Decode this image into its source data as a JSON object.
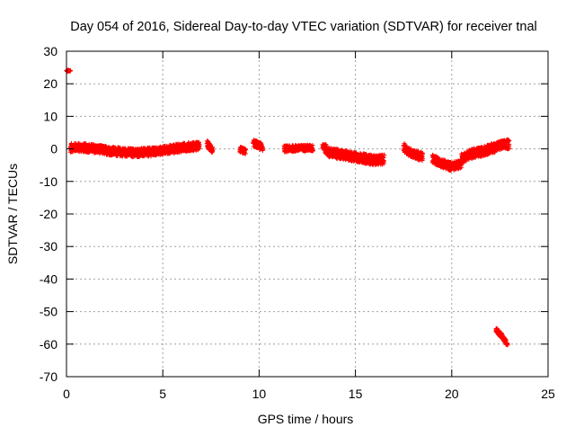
{
  "chart_data": {
    "type": "scatter",
    "title": "Day 054 of 2016, Sidereal Day-to-day VTEC variation (SDTVAR) for receiver tnal",
    "xlabel": "GPS time / hours",
    "ylabel": "SDTVAR / TECUs",
    "xlim": [
      0,
      25
    ],
    "ylim": [
      -70,
      30
    ],
    "x_ticks": [
      0,
      5,
      10,
      15,
      20,
      25
    ],
    "y_ticks": [
      -70,
      -60,
      -50,
      -40,
      -30,
      -20,
      -10,
      0,
      10,
      20,
      30
    ],
    "grid": true,
    "legend": "none",
    "series_color": "#ff0000",
    "series": [
      {
        "name": "SDTVAR",
        "segments": [
          {
            "x": [
              0.0,
              0.2
            ],
            "y": [
              24.0,
              24.0
            ],
            "spread": 0.3
          },
          {
            "x": [
              0.2,
              0.5,
              1.0,
              1.5,
              2.0,
              2.5,
              3.0,
              3.5,
              4.0,
              4.5,
              5.0,
              5.5,
              6.0,
              6.5,
              6.9
            ],
            "y": [
              0.3,
              0.5,
              0.3,
              0.0,
              -0.4,
              -0.8,
              -1.0,
              -1.2,
              -1.1,
              -0.9,
              -0.5,
              0.0,
              0.4,
              0.7,
              0.8
            ],
            "spread": 1.8
          },
          {
            "x": [
              7.3,
              7.6
            ],
            "y": [
              1.5,
              -0.5
            ],
            "spread": 1.5
          },
          {
            "x": [
              9.0,
              9.3
            ],
            "y": [
              -0.3,
              -0.8
            ],
            "spread": 1.2
          },
          {
            "x": [
              9.7,
              10.2
            ],
            "y": [
              1.8,
              0.5
            ],
            "spread": 1.5
          },
          {
            "x": [
              11.3,
              12.0,
              12.5,
              12.8
            ],
            "y": [
              0.0,
              0.2,
              0.3,
              0.2
            ],
            "spread": 1.3
          },
          {
            "x": [
              13.3,
              13.6,
              14.0,
              14.5,
              15.0,
              15.5,
              16.0,
              16.5
            ],
            "y": [
              1.0,
              -1.0,
              -1.5,
              -2.0,
              -2.5,
              -3.0,
              -3.5,
              -3.2
            ],
            "spread": 2.0
          },
          {
            "x": [
              17.5,
              17.8,
              18.2,
              18.5
            ],
            "y": [
              0.5,
              -1.0,
              -2.0,
              -2.5
            ],
            "spread": 1.8
          },
          {
            "x": [
              19.0,
              19.5,
              20.0,
              20.5
            ],
            "y": [
              -3.0,
              -4.5,
              -5.5,
              -4.5
            ],
            "spread": 1.8
          },
          {
            "x": [
              20.5,
              21.0,
              21.5,
              22.0,
              22.5,
              23.0
            ],
            "y": [
              -3.0,
              -1.5,
              -1.0,
              0.0,
              1.0,
              1.5
            ],
            "spread": 2.0
          },
          {
            "x": [
              22.3,
              22.6,
              22.9
            ],
            "y": [
              -55.5,
              -57.5,
              -60.0
            ],
            "spread": 1.0
          }
        ]
      }
    ]
  }
}
